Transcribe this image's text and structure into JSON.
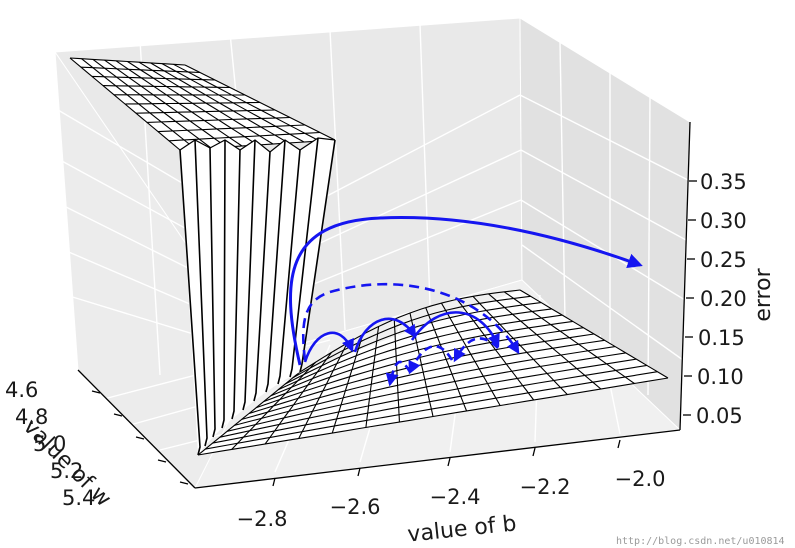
{
  "chart_data": {
    "type": "surface",
    "xlabel": "value of b",
    "ylabel": "value of w",
    "zlabel": "error",
    "x_ticks": [
      "−2.8",
      "−2.6",
      "−2.4",
      "−2.2",
      "−2.0"
    ],
    "y_ticks": [
      "4.6",
      "4.8",
      "5.0",
      "5.2",
      "5.4"
    ],
    "z_ticks": [
      "0.05",
      "0.10",
      "0.15",
      "0.20",
      "0.25",
      "0.30",
      "0.35"
    ],
    "grid": true,
    "surface": {
      "description_units": "wireframe surface of error over (b, w); a cliff near b = -2.8 where error jumps from about 0.1 to about 0.35",
      "plateau_error": 0.35,
      "valley_error_min": 0.1
    },
    "series": [
      {
        "style": "solid",
        "color": "#1515f0"
      },
      {
        "style": "dashed",
        "color": "#1515f0"
      }
    ],
    "colors": {
      "trajectory": "#1515f0",
      "surface_line": "#000000",
      "pane": "#ececec"
    }
  },
  "watermark": "http://blog.csdn.net/u010814"
}
